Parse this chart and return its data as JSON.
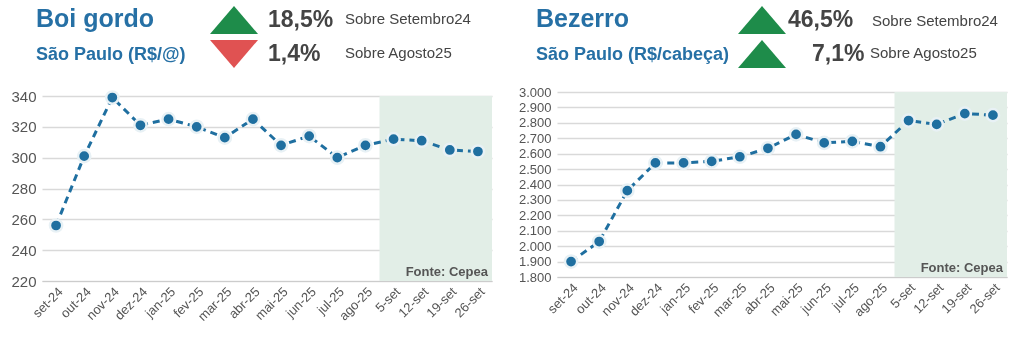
{
  "chart_data": [
    {
      "type": "line",
      "title": "Boi gordo",
      "subtitle": "São Paulo (R$/@)",
      "annotations": [
        "18,5%",
        "Sobre Setembro24",
        "1,4%",
        "Sobre Agosto25",
        "Fonte: Cepea"
      ],
      "categories": [
        "set-24",
        "out-24",
        "nov-24",
        "dez-24",
        "jan-25",
        "fev-25",
        "mar-25",
        "abr-25",
        "mai-25",
        "jun-25",
        "jul-25",
        "ago-25",
        "5-set",
        "12-set",
        "19-set",
        "26-set"
      ],
      "series": [
        {
          "color": "#1f6fa0",
          "line_style": "dashed",
          "values": [
            256,
            301,
            339,
            321,
            325,
            320,
            313,
            325,
            308,
            314,
            300,
            308,
            312,
            311,
            305,
            304
          ]
        }
      ],
      "ylim": [
        220,
        340
      ],
      "yticks": [
        220,
        240,
        260,
        280,
        300,
        320,
        340
      ],
      "grid": "y",
      "marker": "circle",
      "bands": [
        {
          "axis": "x",
          "from": "5-set",
          "to": "26-set",
          "color": "#e2eee7"
        }
      ]
    },
    {
      "type": "line",
      "title": "Bezerro",
      "subtitle": "São Paulo (R$/cabeça)",
      "annotations": [
        "46,5%",
        "Sobre Setembro24",
        "7,1%",
        "Sobre Agosto25",
        "Fonte: Cepea"
      ],
      "categories": [
        "set-24",
        "out-24",
        "nov-24",
        "dez-24",
        "jan-25",
        "fev-25",
        "mar-25",
        "abr-25",
        "mai-25",
        "jun-25",
        "jul-25",
        "ago-25",
        "5-set",
        "12-set",
        "19-set",
        "26-set"
      ],
      "series": [
        {
          "color": "#1f6fa0",
          "line_style": "dashed",
          "values": [
            1900,
            2030,
            2360,
            2540,
            2540,
            2550,
            2580,
            2635,
            2725,
            2670,
            2680,
            2645,
            2815,
            2790,
            2860,
            2850
          ]
        }
      ],
      "ylim": [
        1800,
        3000
      ],
      "yticks": [
        {
          "value": 1800,
          "label": "1.800"
        },
        {
          "value": 1900,
          "label": "1.900"
        },
        {
          "value": 2000,
          "label": "2.000"
        },
        {
          "value": 2100,
          "label": "2.100"
        },
        {
          "value": 2200,
          "label": "2.200"
        },
        {
          "value": 2300,
          "label": "2.300"
        },
        {
          "value": 2400,
          "label": "2.400"
        },
        {
          "value": 2500,
          "label": "2.500"
        },
        {
          "value": 2600,
          "label": "2.600"
        },
        {
          "value": 2700,
          "label": "2.700"
        },
        {
          "value": 2800,
          "label": "2.800"
        },
        {
          "value": 2900,
          "label": "2.900"
        },
        {
          "value": 3000,
          "label": "3.000"
        }
      ],
      "grid": "y",
      "marker": "circle",
      "bands": [
        {
          "axis": "x",
          "from": "5-set",
          "to": "26-set",
          "color": "#e2eee7"
        }
      ]
    }
  ]
}
